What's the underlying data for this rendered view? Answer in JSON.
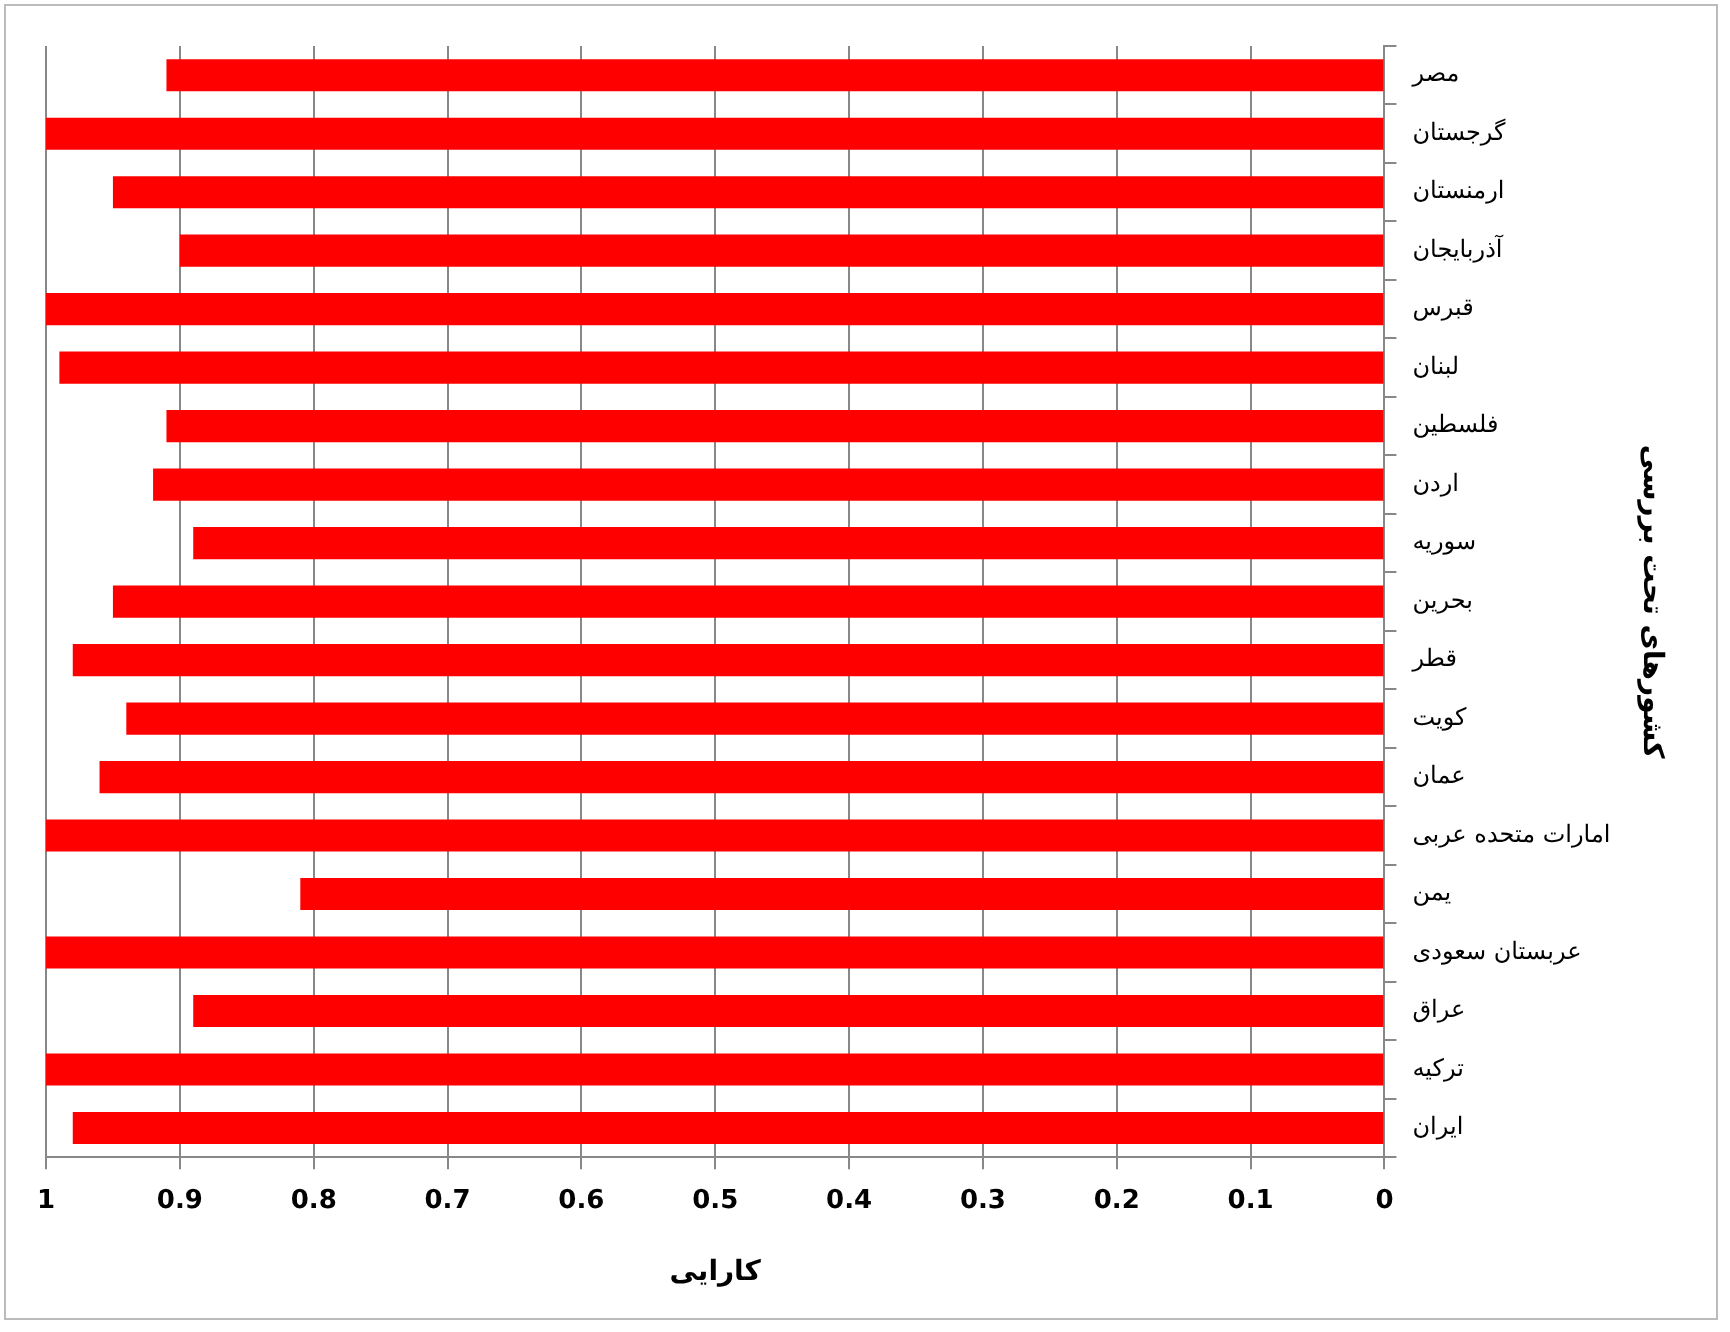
{
  "chart_data": {
    "type": "bar",
    "orientation": "horizontal",
    "categories": [
      "مصر",
      "گرجستان",
      "ارمنستان",
      "آذربایجان",
      "قبرس",
      "لبنان",
      "فلسطین",
      "اردن",
      "سوریه",
      "بحرین",
      "قطر",
      "کویت",
      "عمان",
      "امارات متحده عربی",
      "یمن",
      "عربستان سعودی",
      "عراق",
      "ترکیه",
      "ایران"
    ],
    "values": [
      0.91,
      1,
      0.95,
      0.9,
      1,
      0.99,
      0.91,
      0.92,
      0.89,
      0.95,
      0.98,
      0.94,
      0.96,
      1,
      0.81,
      1,
      0.89,
      1,
      0.98
    ],
    "color": "#ff0000",
    "xlim": [
      1,
      0
    ],
    "xticks": [
      1,
      0.9,
      0.8,
      0.7,
      0.6,
      0.5,
      0.4,
      0.3,
      0.2,
      0.1,
      0
    ],
    "xlabel": "کارایی",
    "ylabel": "کشورهای تحت بررسی",
    "grid": "x",
    "legend": false
  }
}
